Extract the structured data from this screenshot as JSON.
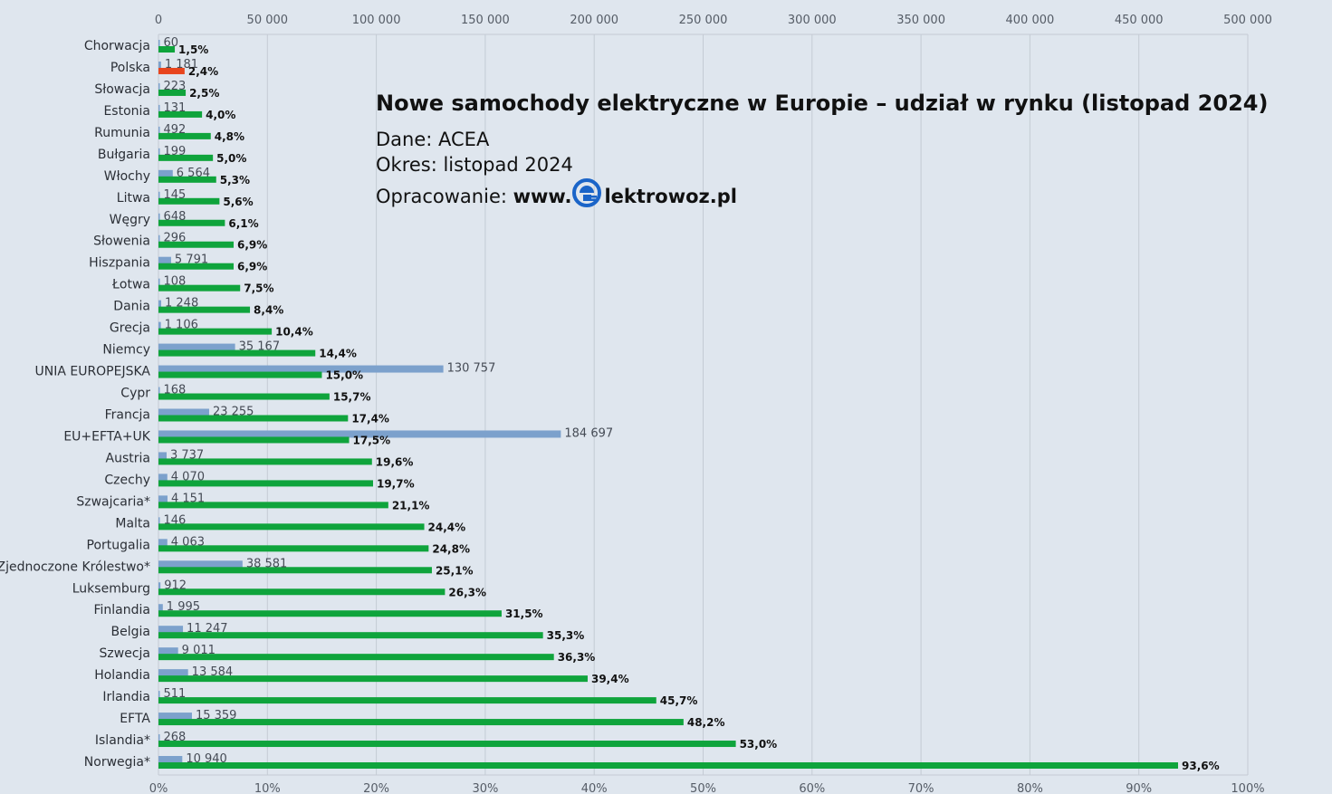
{
  "info": {
    "title": "Nowe samochody elektryczne w Europie – udział w rynku (listopad 2024)",
    "source": "Dane: ACEA",
    "period": "Okres: listopad 2024",
    "credit_prefix": "Opracowanie: ",
    "credit_www": "www.",
    "credit_brand": "lektrowoz.pl",
    "logo_icon": "plug-in-e-logo-icon"
  },
  "colors": {
    "background": "#dfe6ee",
    "share_bar": "#0fa43c",
    "share_bar_highlight": "#e8451e",
    "count_bar": "#7ca1cc",
    "grid": "#c4cbd4"
  },
  "chart_data": {
    "type": "bar",
    "orientation": "horizontal",
    "x_top_axis": {
      "min": 0,
      "max": 500000,
      "ticks": [
        "0",
        "50 000",
        "100 000",
        "150 000",
        "200 000",
        "250 000",
        "300 000",
        "350 000",
        "400 000",
        "450 000",
        "500 000"
      ]
    },
    "x_bottom_axis": {
      "min": 0,
      "max": 100,
      "ticks": [
        "0%",
        "10%",
        "20%",
        "30%",
        "40%",
        "50%",
        "60%",
        "70%",
        "80%",
        "90%",
        "100%"
      ]
    },
    "grid": true,
    "highlight": "Polska",
    "categories": [
      "Chorwacja",
      "Polska",
      "Słowacja",
      "Estonia",
      "Rumunia",
      "Bułgaria",
      "Włochy",
      "Litwa",
      "Węgry",
      "Słowenia",
      "Hiszpania",
      "Łotwa",
      "Dania",
      "Grecja",
      "Niemcy",
      "UNIA EUROPEJSKA",
      "Cypr",
      "Francja",
      "EU+EFTA+UK",
      "Austria",
      "Czechy",
      "Szwajcaria*",
      "Malta",
      "Portugalia",
      "Zjednoczone Królestwo*",
      "Luksemburg",
      "Finlandia",
      "Belgia",
      "Szwecja",
      "Holandia",
      "Irlandia",
      "EFTA",
      "Islandia*",
      "Norwegia*"
    ],
    "series": [
      {
        "values": [
          60,
          1181,
          223,
          131,
          492,
          199,
          6564,
          145,
          648,
          296,
          5791,
          108,
          1248,
          1106,
          35167,
          130757,
          168,
          23255,
          184697,
          3737,
          4070,
          4151,
          146,
          4063,
          38581,
          912,
          1995,
          11247,
          9011,
          13584,
          511,
          15359,
          268,
          10940
        ],
        "labels": [
          "60",
          "1 181",
          "223",
          "131",
          "492",
          "199",
          "6 564",
          "145",
          "648",
          "296",
          "5 791",
          "108",
          "1 248",
          "1 106",
          "35 167",
          "130 757",
          "168",
          "23 255",
          "184 697",
          "3 737",
          "4 070",
          "4 151",
          "146",
          "4 063",
          "38 581",
          "912",
          "1 995",
          "11 247",
          "9 011",
          "13 584",
          "511",
          "15 359",
          "268",
          "10 940"
        ]
      },
      {
        "values": [
          1.5,
          2.4,
          2.5,
          4.0,
          4.8,
          5.0,
          5.3,
          5.6,
          6.1,
          6.9,
          6.9,
          7.5,
          8.4,
          10.4,
          14.4,
          15.0,
          15.7,
          17.4,
          17.5,
          19.6,
          19.7,
          21.1,
          24.4,
          24.8,
          25.1,
          26.3,
          31.5,
          35.3,
          36.3,
          39.4,
          45.7,
          48.2,
          53.0,
          93.6
        ],
        "labels": [
          "1,5%",
          "2,4%",
          "2,5%",
          "4,0%",
          "4,8%",
          "5,0%",
          "5,3%",
          "5,6%",
          "6,1%",
          "6,9%",
          "6,9%",
          "7,5%",
          "8,4%",
          "10,4%",
          "14,4%",
          "15,0%",
          "15,7%",
          "17,4%",
          "17,5%",
          "19,6%",
          "19,7%",
          "21,1%",
          "24,4%",
          "24,8%",
          "25,1%",
          "26,3%",
          "31,5%",
          "35,3%",
          "36,3%",
          "39,4%",
          "45,7%",
          "48,2%",
          "53,0%",
          "93,6%"
        ]
      }
    ]
  }
}
